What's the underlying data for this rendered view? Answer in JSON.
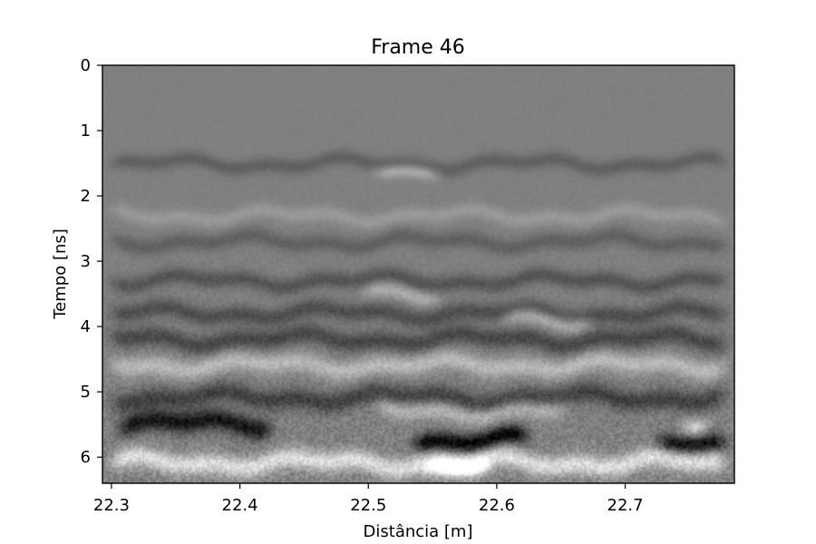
{
  "chart_data": {
    "type": "heatmap",
    "title": "Frame 46",
    "xlabel": "Distância [m]",
    "ylabel": "Tempo [ns]",
    "colormap": "gray",
    "grid": false,
    "xlim": [
      22.293,
      22.785
    ],
    "ylim": [
      6.4,
      0
    ],
    "y_inverted": true,
    "xticks": [
      22.3,
      22.4,
      22.5,
      22.6,
      22.7
    ],
    "xtick_labels": [
      "22.3",
      "22.4",
      "22.5",
      "22.6",
      "22.7"
    ],
    "yticks": [
      0,
      1,
      2,
      3,
      4,
      5,
      6
    ],
    "ytick_labels": [
      "0",
      "1",
      "2",
      "3",
      "4",
      "5",
      "6"
    ],
    "reflectors": [
      {
        "t": 1.5,
        "x_from": 22.293,
        "x_to": 22.785,
        "amplitude": -0.25,
        "thickness": 0.12
      },
      {
        "t": 1.6,
        "x_from": 22.5,
        "x_to": 22.56,
        "amplitude": 0.4,
        "thickness": 0.1
      },
      {
        "t": 2.3,
        "x_from": 22.293,
        "x_to": 22.785,
        "amplitude": 0.2,
        "thickness": 0.12
      },
      {
        "t": 2.7,
        "x_from": 22.293,
        "x_to": 22.785,
        "amplitude": -0.25,
        "thickness": 0.13
      },
      {
        "t": 3.3,
        "x_from": 22.293,
        "x_to": 22.785,
        "amplitude": -0.35,
        "thickness": 0.13
      },
      {
        "t": 3.5,
        "x_from": 22.49,
        "x_to": 22.56,
        "amplitude": 0.35,
        "thickness": 0.12
      },
      {
        "t": 3.8,
        "x_from": 22.293,
        "x_to": 22.785,
        "amplitude": -0.4,
        "thickness": 0.14
      },
      {
        "t": 3.9,
        "x_from": 22.6,
        "x_to": 22.68,
        "amplitude": 0.45,
        "thickness": 0.12
      },
      {
        "t": 4.2,
        "x_from": 22.293,
        "x_to": 22.785,
        "amplitude": -0.45,
        "thickness": 0.15
      },
      {
        "t": 4.6,
        "x_from": 22.293,
        "x_to": 22.785,
        "amplitude": 0.45,
        "thickness": 0.15
      },
      {
        "t": 5.1,
        "x_from": 22.293,
        "x_to": 22.785,
        "amplitude": -0.5,
        "thickness": 0.16
      },
      {
        "t": 5.3,
        "x_from": 22.5,
        "x_to": 22.66,
        "amplitude": 0.45,
        "thickness": 0.14
      },
      {
        "t": 5.5,
        "x_from": 22.3,
        "x_to": 22.43,
        "amplitude": -0.85,
        "thickness": 0.16
      },
      {
        "t": 5.75,
        "x_from": 22.53,
        "x_to": 22.63,
        "amplitude": -1.0,
        "thickness": 0.14
      },
      {
        "t": 5.85,
        "x_from": 22.72,
        "x_to": 22.785,
        "amplitude": -0.9,
        "thickness": 0.14
      },
      {
        "t": 5.55,
        "x_from": 22.74,
        "x_to": 22.77,
        "amplitude": 0.7,
        "thickness": 0.12
      },
      {
        "t": 6.1,
        "x_from": 22.293,
        "x_to": 22.785,
        "amplitude": 0.75,
        "thickness": 0.16
      },
      {
        "t": 6.2,
        "x_from": 22.54,
        "x_to": 22.6,
        "amplitude": 0.95,
        "thickness": 0.14
      }
    ]
  }
}
